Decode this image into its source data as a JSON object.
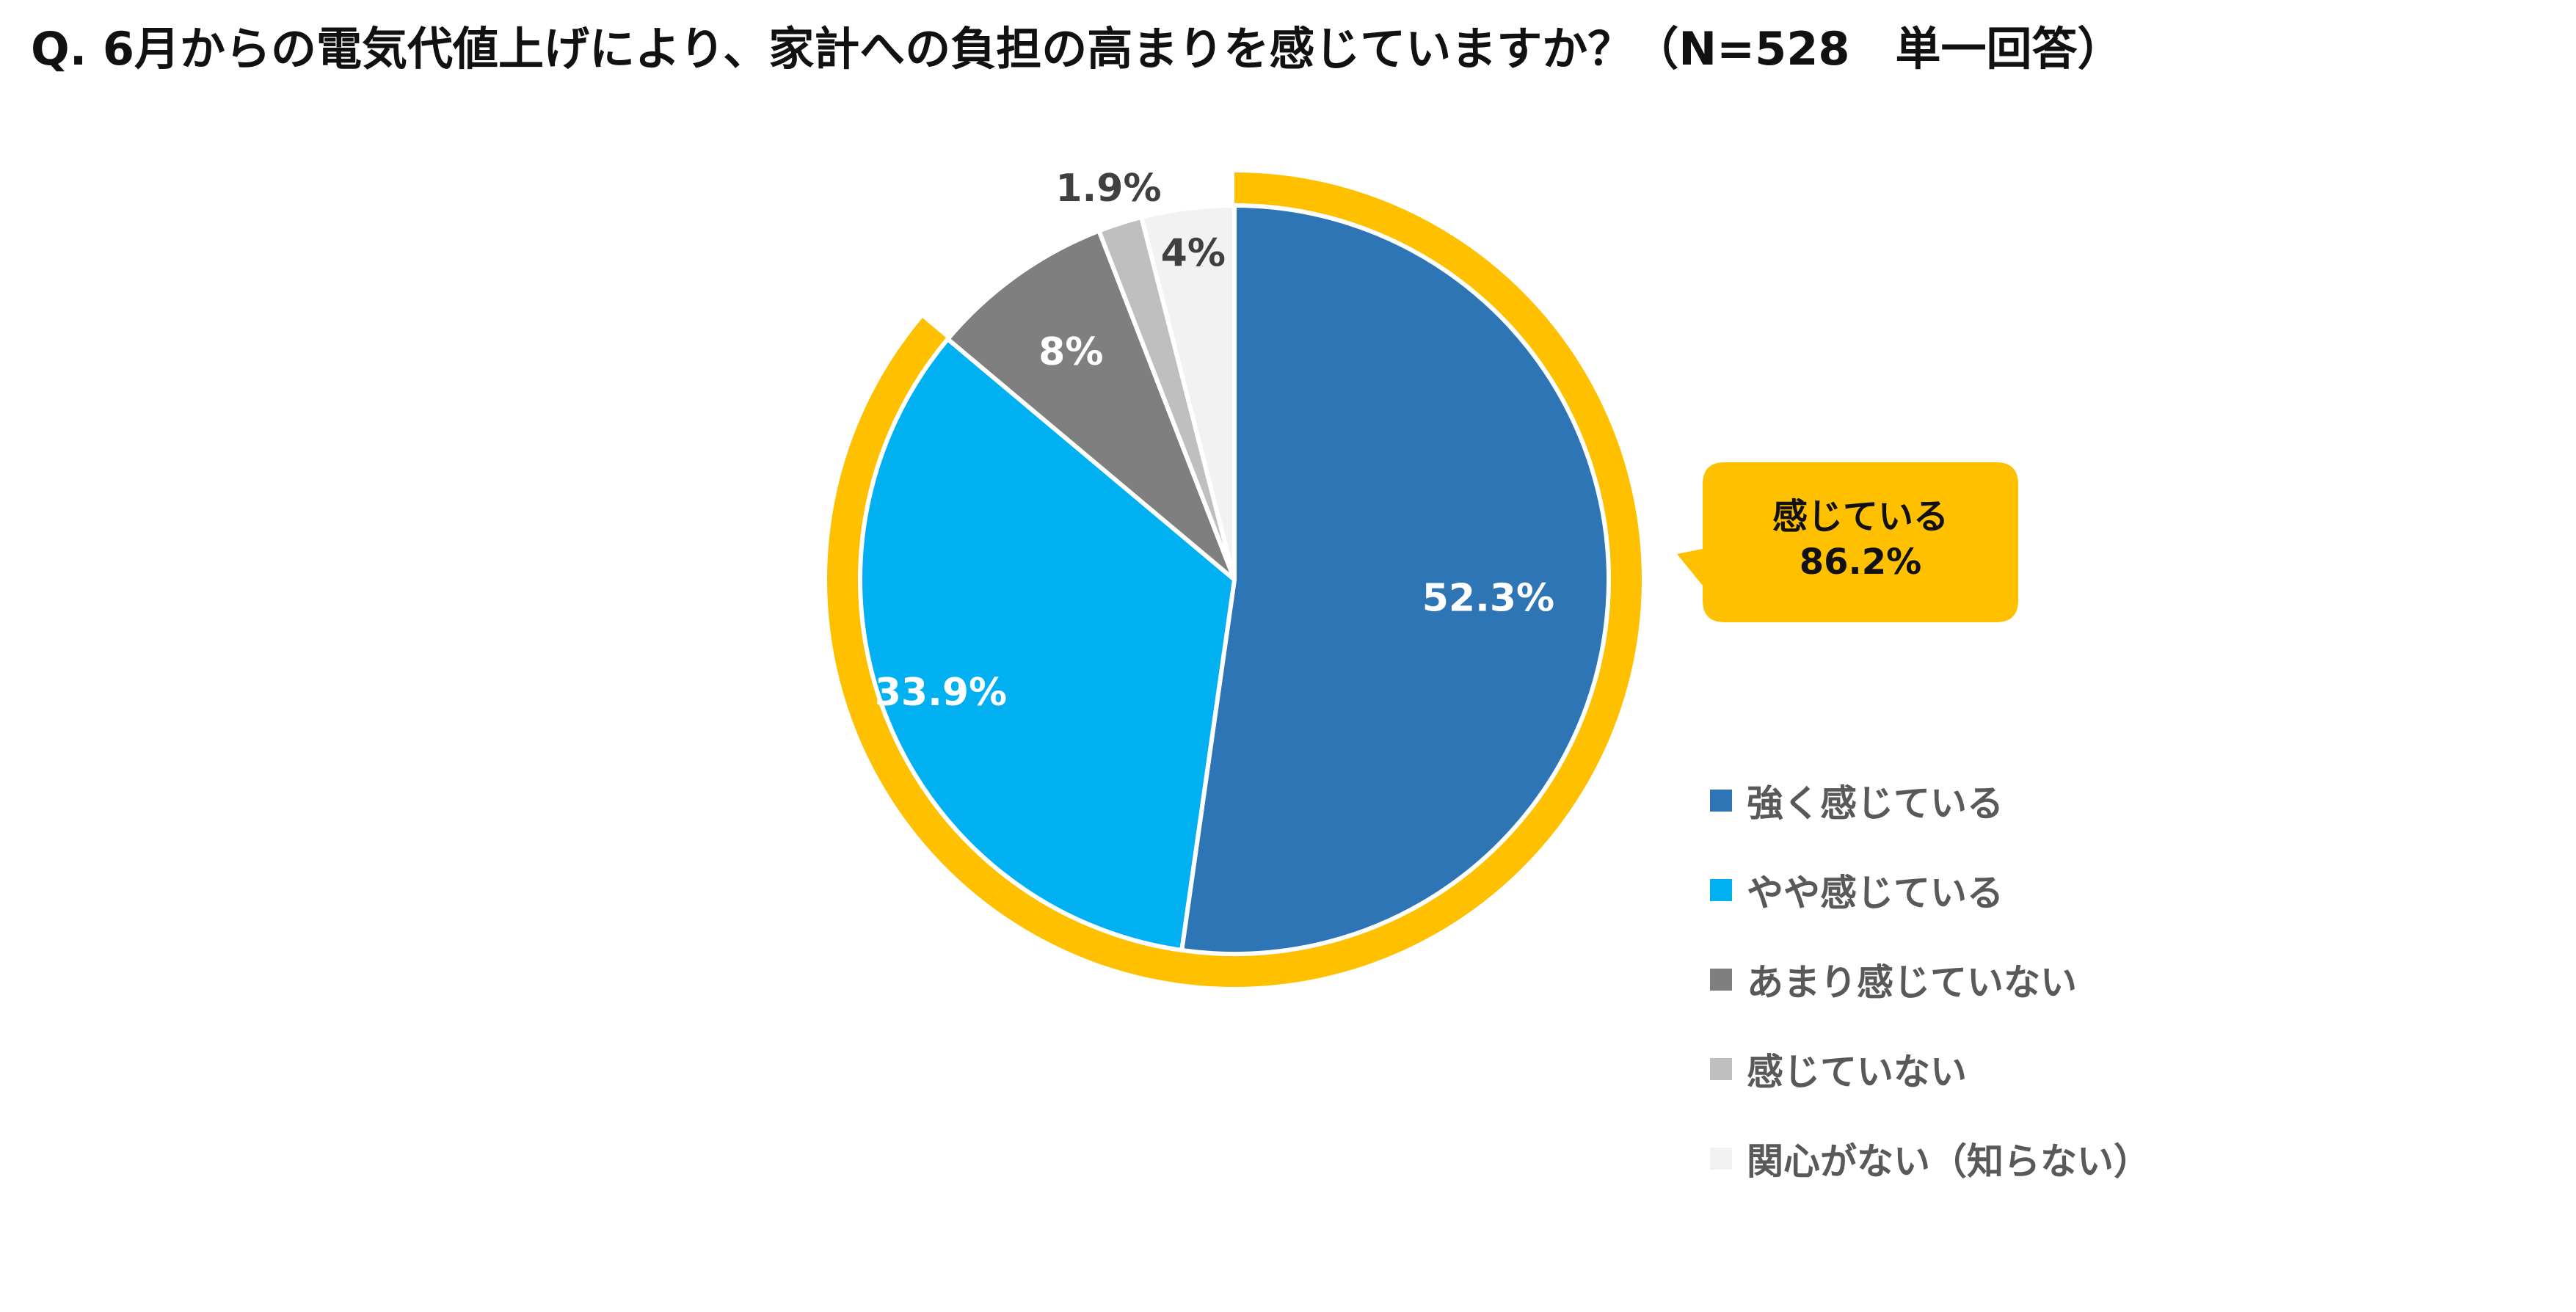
{
  "title": "Q.  6月からの電気代値上げにより、家計への負担の高まりを感じていますか？（N=528　単一回答）",
  "callout": {
    "line1": "感じている",
    "line2": "86.2%",
    "color": "#FFC000"
  },
  "chart_data": {
    "type": "pie",
    "title": "Q.  6月からの電気代値上げにより、家計への負担の高まりを感じていますか？（N=528　単一回答）",
    "n": 528,
    "slices": [
      {
        "label": "強く感じている",
        "value": 52.3,
        "display": "52.3%",
        "color": "#2E75B6"
      },
      {
        "label": "やや感じている",
        "value": 33.9,
        "display": "33.9%",
        "color": "#00B0F0"
      },
      {
        "label": "あまり感じていない",
        "value": 8,
        "display": "8%",
        "color": "#7F7F7F"
      },
      {
        "label": "感じていない",
        "value": 1.9,
        "display": "1.9%",
        "color": "#BFBFBF"
      },
      {
        "label": "関心がない（知らない）",
        "value": 4,
        "display": "4%",
        "color": "#F2F2F2"
      }
    ],
    "highlight_group": {
      "label": "感じている",
      "value": 86.2,
      "members": [
        "強く感じている",
        "やや感じている"
      ]
    },
    "legend_position": "right"
  }
}
